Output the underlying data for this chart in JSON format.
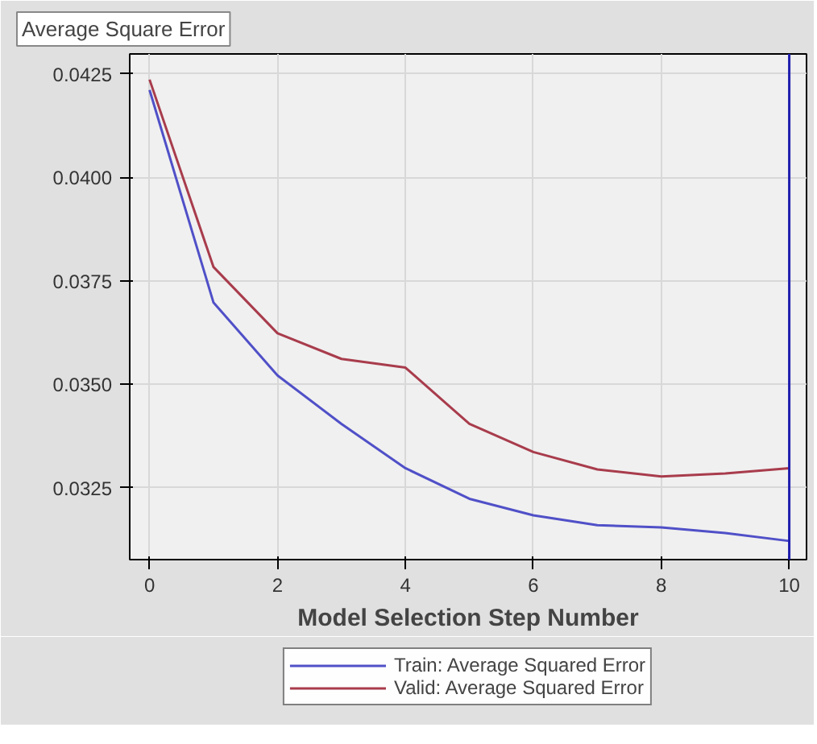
{
  "chart_data": {
    "type": "line",
    "title": "Average Square Error",
    "xlabel": "Model Selection Step Number",
    "x": [
      0,
      1,
      2,
      3,
      4,
      5,
      6,
      7,
      8,
      9,
      10
    ],
    "series": [
      {
        "name": "Train: Average Squared Error",
        "color": "#5050c8",
        "values": [
          0.04211,
          0.03697,
          0.03521,
          0.03404,
          0.03297,
          0.03223,
          0.03183,
          0.03159,
          0.03154,
          0.0314,
          0.03121
        ]
      },
      {
        "name": "Valid: Average Squared Error",
        "color": "#a83c4c",
        "values": [
          0.04236,
          0.03783,
          0.03623,
          0.03561,
          0.0354,
          0.03404,
          0.03336,
          0.03294,
          0.03277,
          0.03284,
          0.03297
        ]
      }
    ],
    "xlim": [
      -0.31,
      10.27
    ],
    "ylim": [
      0.03076,
      0.04298
    ],
    "xticks": [
      0,
      2,
      4,
      6,
      8,
      10
    ],
    "yticks": [
      {
        "value": 0.0325,
        "label": "0.0325"
      },
      {
        "value": 0.035,
        "label": "0.0350"
      },
      {
        "value": 0.0375,
        "label": "0.0375"
      },
      {
        "value": 0.04,
        "label": "0.0400"
      },
      {
        "value": 0.0425,
        "label": "0.0425"
      }
    ],
    "ref_lines": [
      {
        "axis": "x",
        "value": 10,
        "color": "#2020b0"
      }
    ],
    "grid": true,
    "legend": "bottom",
    "marker": "none",
    "line_style": "solid"
  }
}
